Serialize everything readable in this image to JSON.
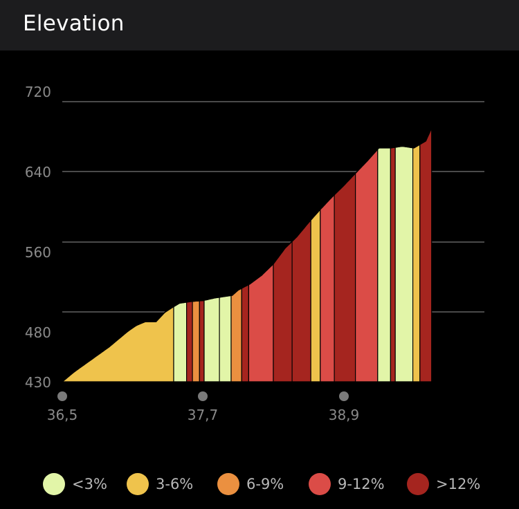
{
  "header": {
    "title": "Elevation"
  },
  "colors": {
    "lt3": "#e2f5a8",
    "3to6": "#efc34c",
    "6to9": "#eb9040",
    "9to12": "#db4c47",
    "gt12": "#a5251f",
    "gridline": "#4a4a4a",
    "tick_text": "#8a8a8a",
    "marker": "#7a7a7a"
  },
  "chart_data": {
    "type": "area",
    "title": "Elevation",
    "xlabel": "",
    "ylabel": "",
    "xlim": [
      36.5,
      40.1
    ],
    "ylim": [
      430,
      720
    ],
    "y_ticks": [
      "720",
      "640",
      "560",
      "480",
      "430"
    ],
    "y_tick_values": [
      720,
      640,
      560,
      480,
      430
    ],
    "x_ticks": [
      "36,5",
      "37,7",
      "38,9"
    ],
    "x_tick_values": [
      36.5,
      37.7,
      38.9
    ],
    "gridlines": [
      720,
      640,
      560,
      480
    ],
    "profile": [
      {
        "x": 36.5,
        "y": 430
      },
      {
        "x": 36.6,
        "y": 437
      },
      {
        "x": 36.7,
        "y": 443
      },
      {
        "x": 36.8,
        "y": 449
      },
      {
        "x": 36.9,
        "y": 455
      },
      {
        "x": 37.0,
        "y": 462
      },
      {
        "x": 37.1,
        "y": 469
      },
      {
        "x": 37.2,
        "y": 473
      },
      {
        "x": 37.3,
        "y": 473
      },
      {
        "x": 37.4,
        "y": 482
      },
      {
        "x": 37.5,
        "y": 490
      },
      {
        "x": 37.6,
        "y": 492
      },
      {
        "x": 37.7,
        "y": 493
      },
      {
        "x": 37.8,
        "y": 496
      },
      {
        "x": 37.95,
        "y": 499
      },
      {
        "x": 38.0,
        "y": 505
      },
      {
        "x": 38.1,
        "y": 512
      },
      {
        "x": 38.2,
        "y": 522
      },
      {
        "x": 38.3,
        "y": 535
      },
      {
        "x": 38.4,
        "y": 553
      },
      {
        "x": 38.5,
        "y": 566
      },
      {
        "x": 38.6,
        "y": 582
      },
      {
        "x": 38.7,
        "y": 597
      },
      {
        "x": 38.8,
        "y": 611
      },
      {
        "x": 38.9,
        "y": 624
      },
      {
        "x": 39.0,
        "y": 638
      },
      {
        "x": 39.1,
        "y": 652
      },
      {
        "x": 39.2,
        "y": 667
      },
      {
        "x": 39.3,
        "y": 667
      },
      {
        "x": 39.4,
        "y": 669
      },
      {
        "x": 39.5,
        "y": 667
      },
      {
        "x": 39.6,
        "y": 675
      },
      {
        "x": 39.65,
        "y": 690
      }
    ],
    "segments": [
      {
        "x0": 36.5,
        "x1": 37.45,
        "grade": "3-6%"
      },
      {
        "x0": 37.45,
        "x1": 37.56,
        "grade": "<3%"
      },
      {
        "x0": 37.56,
        "x1": 37.61,
        "grade": ">12%"
      },
      {
        "x0": 37.61,
        "x1": 37.67,
        "grade": "6-9%"
      },
      {
        "x0": 37.67,
        "x1": 37.71,
        "grade": ">12%"
      },
      {
        "x0": 37.71,
        "x1": 37.84,
        "grade": "<3%"
      },
      {
        "x0": 37.84,
        "x1": 37.94,
        "grade": "<3%"
      },
      {
        "x0": 37.94,
        "x1": 38.03,
        "grade": "6-9%"
      },
      {
        "x0": 38.03,
        "x1": 38.09,
        "grade": ">12%"
      },
      {
        "x0": 38.09,
        "x1": 38.3,
        "grade": "9-12%"
      },
      {
        "x0": 38.3,
        "x1": 38.46,
        "grade": ">12%"
      },
      {
        "x0": 38.46,
        "x1": 38.62,
        "grade": ">12%"
      },
      {
        "x0": 38.62,
        "x1": 38.7,
        "grade": "3-6%"
      },
      {
        "x0": 38.7,
        "x1": 38.82,
        "grade": "9-12%"
      },
      {
        "x0": 38.82,
        "x1": 39.0,
        "grade": ">12%"
      },
      {
        "x0": 39.0,
        "x1": 39.19,
        "grade": "9-12%"
      },
      {
        "x0": 39.19,
        "x1": 39.3,
        "grade": "<3%"
      },
      {
        "x0": 39.3,
        "x1": 39.34,
        "grade": ">12%"
      },
      {
        "x0": 39.34,
        "x1": 39.49,
        "grade": "<3%"
      },
      {
        "x0": 39.49,
        "x1": 39.55,
        "grade": "3-6%"
      },
      {
        "x0": 39.55,
        "x1": 39.65,
        "grade": ">12%"
      }
    ],
    "legend": [
      {
        "label": "<3%",
        "key": "lt3"
      },
      {
        "label": "3-6%",
        "key": "3to6"
      },
      {
        "label": "6-9%",
        "key": "6to9"
      },
      {
        "label": "9-12%",
        "key": "9to12"
      },
      {
        "label": ">12%",
        "key": "gt12"
      }
    ],
    "grid": true,
    "legend_position": "bottom"
  }
}
